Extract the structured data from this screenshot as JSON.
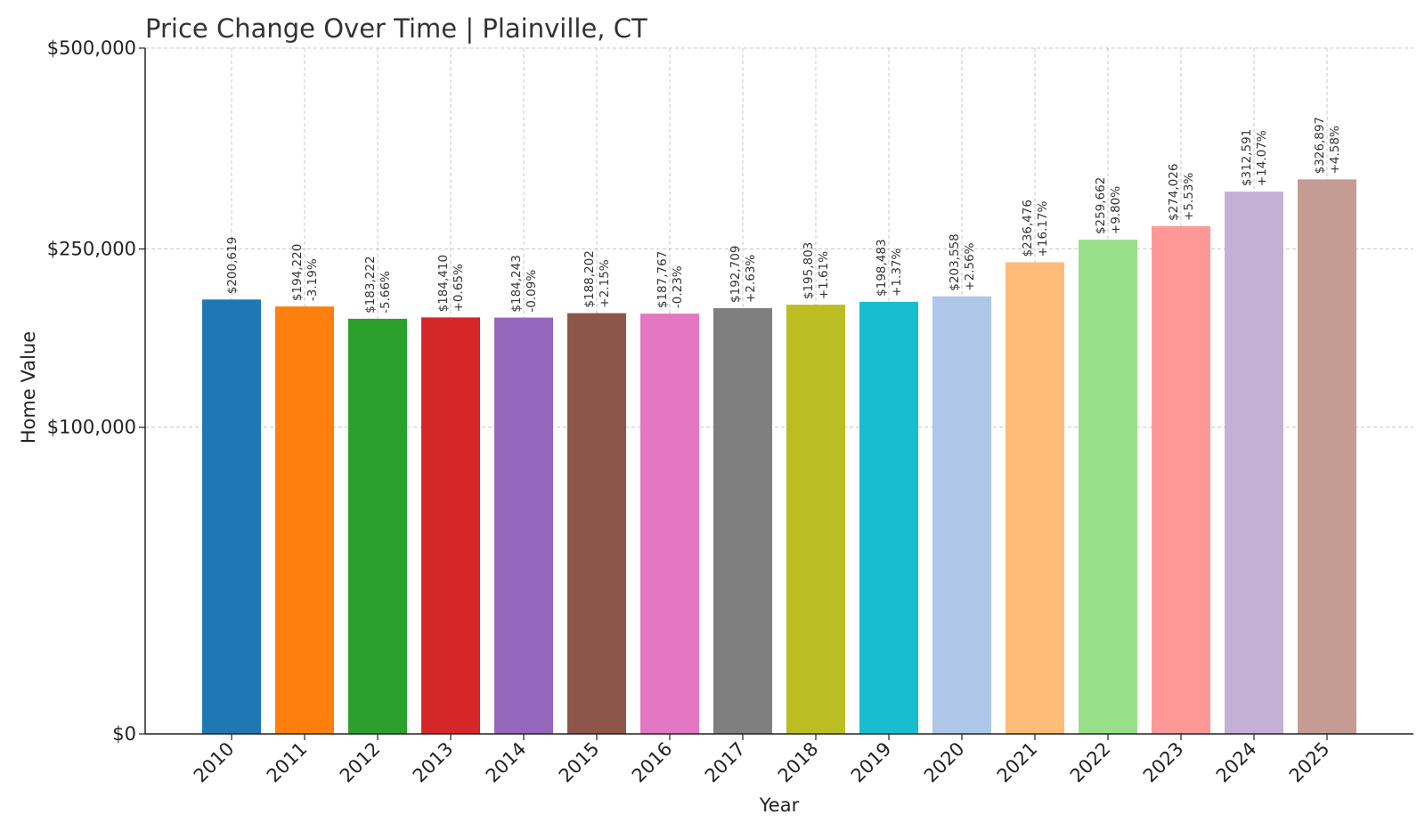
{
  "chart_data": {
    "type": "bar",
    "title": "Price Change Over Time | Plainville, CT",
    "xlabel": "Year",
    "ylabel": "Home Value",
    "y_scale": "sqrt",
    "ylim": [
      0,
      500000
    ],
    "yticks": [
      0,
      100000,
      250000,
      500000
    ],
    "ytick_labels": [
      "$0",
      "$100,000",
      "$250,000",
      "$500,000"
    ],
    "grid": true,
    "categories": [
      "2010",
      "2011",
      "2012",
      "2013",
      "2014",
      "2015",
      "2016",
      "2017",
      "2018",
      "2019",
      "2020",
      "2021",
      "2022",
      "2023",
      "2024",
      "2025"
    ],
    "values": [
      200619,
      194220,
      183222,
      184410,
      184243,
      188202,
      187767,
      192709,
      195803,
      198483,
      203558,
      236476,
      259662,
      274026,
      312591,
      326897
    ],
    "value_labels": [
      "$200,619",
      "$194,220",
      "$183,222",
      "$184,410",
      "$184,243",
      "$188,202",
      "$187,767",
      "$192,709",
      "$195,803",
      "$198,483",
      "$203,558",
      "$236,476",
      "$259,662",
      "$274,026",
      "$312,591",
      "$326,897"
    ],
    "change_labels": [
      "",
      "-3.19%",
      "-5.66%",
      "+0.65%",
      "-0.09%",
      "+2.15%",
      "-0.23%",
      "+2.63%",
      "+1.61%",
      "+1.37%",
      "+2.56%",
      "+16.17%",
      "+9.80%",
      "+5.53%",
      "+14.07%",
      "+4.58%"
    ],
    "colors": [
      "#1f77b4",
      "#ff7f0e",
      "#2ca02c",
      "#d62728",
      "#9467bd",
      "#8c564b",
      "#e377c2",
      "#7f7f7f",
      "#bcbd22",
      "#17becf",
      "#aec7e8",
      "#ffbb78",
      "#98df8a",
      "#ff9896",
      "#c5b0d5",
      "#c49c94"
    ]
  }
}
